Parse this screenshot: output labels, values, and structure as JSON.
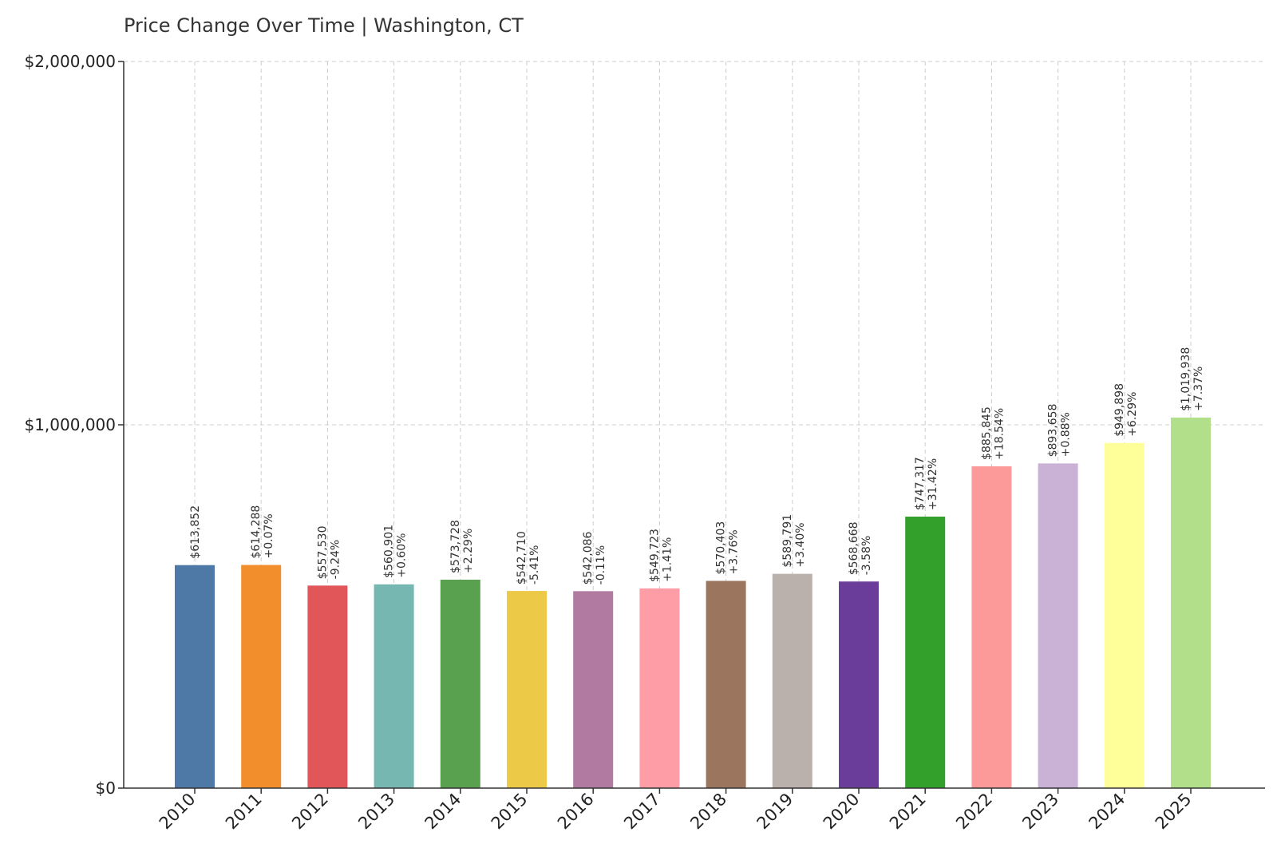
{
  "chart_data": {
    "type": "bar",
    "title": "Price Change Over Time | Washington, CT",
    "xlabel": "",
    "ylabel": "",
    "categories": [
      "2010",
      "2011",
      "2012",
      "2013",
      "2014",
      "2015",
      "2016",
      "2017",
      "2018",
      "2019",
      "2020",
      "2021",
      "2022",
      "2023",
      "2024",
      "2025"
    ],
    "values": [
      613852,
      614288,
      557530,
      560901,
      573728,
      542710,
      542086,
      549723,
      570403,
      589791,
      568668,
      747317,
      885845,
      893658,
      949898,
      1019938
    ],
    "value_labels": [
      "$613,852",
      "$614,288",
      "$557,530",
      "$560,901",
      "$573,728",
      "$542,710",
      "$542,086",
      "$549,723",
      "$570,403",
      "$589,791",
      "$568,668",
      "$747,317",
      "$885,845",
      "$893,658",
      "$949,898",
      "$1,019,938"
    ],
    "change_labels": [
      "",
      "+0.07%",
      "-9.24%",
      "+0.60%",
      "+2.29%",
      "-5.41%",
      "-0.11%",
      "+1.41%",
      "+3.76%",
      "+3.40%",
      "-3.58%",
      "+31.42%",
      "+18.54%",
      "+0.88%",
      "+6.29%",
      "+7.37%"
    ],
    "colors": [
      "#4e79a7",
      "#f28e2b",
      "#e15759",
      "#76b7b2",
      "#59a14f",
      "#edc948",
      "#b07aa1",
      "#ff9da7",
      "#9c755f",
      "#bab0ac",
      "#6a3d9a",
      "#33a02c",
      "#fb9a99",
      "#cab2d6",
      "#ffff99",
      "#b2df8a"
    ],
    "ylim": [
      0,
      2000000
    ],
    "yticks": [
      0,
      1000000,
      2000000
    ],
    "ytick_labels": [
      "$0",
      "$1,000,000",
      "$2,000,000"
    ],
    "grid": true,
    "legend": "none"
  }
}
